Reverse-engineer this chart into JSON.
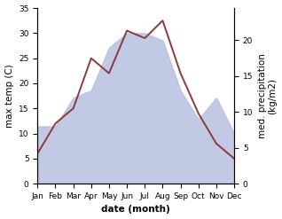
{
  "months": [
    "Jan",
    "Feb",
    "Mar",
    "Apr",
    "May",
    "Jun",
    "Jul",
    "Aug",
    "Sep",
    "Oct",
    "Nov",
    "Dec"
  ],
  "temp": [
    6,
    12,
    15,
    25,
    22,
    30.5,
    29,
    32.5,
    22,
    14,
    8,
    5
  ],
  "precip": [
    8,
    8,
    12,
    13,
    19,
    21,
    21,
    20,
    13,
    9,
    12,
    7
  ],
  "temp_color": "#8B3A3A",
  "precip_fill_color": "#b8c0e0",
  "ylim_temp": [
    0,
    35
  ],
  "ylim_precip": [
    0,
    24.5
  ],
  "ylabel_left": "max temp (C)",
  "ylabel_right": "med. precipitation\n(kg/m2)",
  "xlabel": "date (month)",
  "label_fontsize": 7.5,
  "tick_fontsize": 6.5,
  "right_yticks": [
    0,
    5,
    10,
    15,
    20
  ],
  "right_ytick_labels": [
    "0",
    "5",
    "10",
    "15",
    "20"
  ],
  "left_yticks": [
    0,
    5,
    10,
    15,
    20,
    25,
    30,
    35
  ],
  "bg_color": "#ffffff"
}
